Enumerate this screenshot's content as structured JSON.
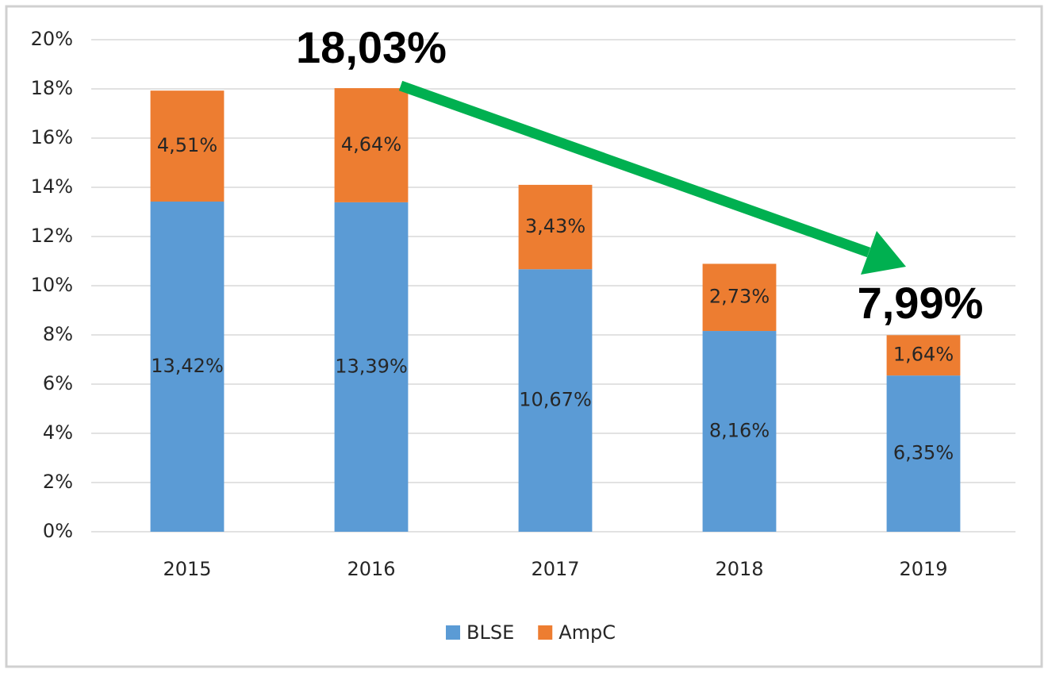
{
  "chart_data": {
    "type": "stacked_bar",
    "categories": [
      "2015",
      "2016",
      "2017",
      "2018",
      "2019"
    ],
    "series": [
      {
        "name": "BLSE",
        "color": "#5b9bd5",
        "values": [
          13.42,
          13.39,
          10.67,
          8.16,
          6.35
        ],
        "value_labels": [
          "13,42%",
          "13,39%",
          "10,67%",
          "8,16%",
          "6,35%"
        ]
      },
      {
        "name": "AmpC",
        "color": "#ed7d31",
        "values": [
          4.51,
          4.64,
          3.43,
          2.73,
          1.64
        ],
        "value_labels": [
          "4,51%",
          "4,64%",
          "3,43%",
          "2,73%",
          "1,64%"
        ]
      }
    ],
    "ylim": [
      0,
      20
    ],
    "yticks": [
      {
        "value": 0,
        "label": "0%"
      },
      {
        "value": 2,
        "label": "2%"
      },
      {
        "value": 4,
        "label": "4%"
      },
      {
        "value": 6,
        "label": "6%"
      },
      {
        "value": 8,
        "label": "8%"
      },
      {
        "value": 10,
        "label": "10%"
      },
      {
        "value": 12,
        "label": "12%"
      },
      {
        "value": 14,
        "label": "14%"
      },
      {
        "value": 16,
        "label": "16%"
      },
      {
        "value": 18,
        "label": "18%"
      },
      {
        "value": 20,
        "label": "20%"
      }
    ],
    "grid": true,
    "legend": "bottom",
    "annotations": [
      {
        "text": "18,03%"
      },
      {
        "text": "7,99%"
      }
    ]
  }
}
